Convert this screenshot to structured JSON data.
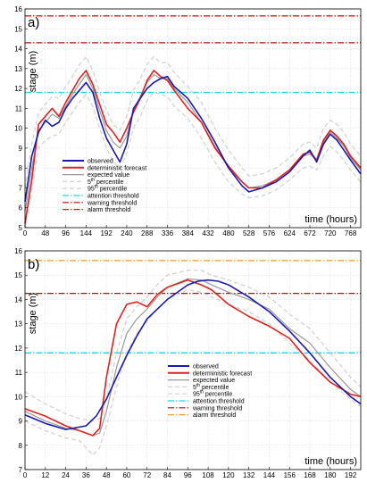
{
  "chart_data": [
    {
      "type": "line",
      "panel_label": "a)",
      "xlabel": "time (hours)",
      "ylabel": "stage (m)",
      "xlim": [
        0,
        792
      ],
      "ylim": [
        5,
        16
      ],
      "xticks": [
        0,
        48,
        96,
        144,
        192,
        240,
        288,
        336,
        384,
        432,
        480,
        528,
        576,
        624,
        672,
        720,
        768
      ],
      "yticks": [
        5,
        6,
        7,
        8,
        9,
        10,
        11,
        12,
        13,
        14,
        15,
        16
      ],
      "grid": true,
      "legend_position": "bottom-left",
      "thresholds": [
        {
          "name": "attention threshold",
          "value": 11.8,
          "color": "#22d3e6"
        },
        {
          "name": "warning threshold",
          "value": 14.3,
          "color": "#aa1111"
        },
        {
          "name": "alarm threshold",
          "value": 15.65,
          "color": "#cc2222"
        }
      ],
      "series": [
        {
          "name": "observed",
          "color": "#1a1aaa",
          "x": [
            0,
            16,
            32,
            48,
            64,
            80,
            96,
            112,
            128,
            144,
            160,
            176,
            192,
            208,
            224,
            240,
            256,
            272,
            288,
            304,
            320,
            336,
            352,
            384,
            416,
            448,
            480,
            512,
            528,
            560,
            592,
            624,
            656,
            672,
            688,
            704,
            720,
            736,
            752,
            768,
            792
          ],
          "y": [
            6.3,
            8.6,
            9.8,
            10.4,
            10.1,
            10.3,
            11.0,
            11.5,
            11.9,
            12.3,
            11.8,
            10.5,
            9.5,
            8.9,
            8.3,
            9.2,
            11.0,
            11.5,
            12.0,
            12.3,
            12.5,
            12.6,
            12.1,
            11.5,
            10.5,
            9.3,
            8.0,
            7.1,
            6.8,
            7.0,
            7.3,
            7.8,
            8.6,
            8.9,
            8.3,
            9.2,
            9.7,
            9.4,
            8.9,
            8.4,
            7.7
          ]
        },
        {
          "name": "deterministic forecast",
          "color": "#dd2222",
          "x": [
            0,
            16,
            32,
            48,
            64,
            80,
            96,
            112,
            128,
            144,
            160,
            176,
            192,
            208,
            224,
            240,
            256,
            272,
            288,
            304,
            320,
            336,
            352,
            384,
            416,
            448,
            480,
            512,
            528,
            560,
            592,
            624,
            656,
            672,
            688,
            704,
            720,
            736,
            752,
            768,
            792
          ],
          "y": [
            5.2,
            7.4,
            10.2,
            10.6,
            11.0,
            10.6,
            11.3,
            11.9,
            12.5,
            12.9,
            12.2,
            11.2,
            10.2,
            9.8,
            9.3,
            10.0,
            10.8,
            11.5,
            12.4,
            12.9,
            12.6,
            12.4,
            11.9,
            11.0,
            10.3,
            9.0,
            8.1,
            7.3,
            7.0,
            7.0,
            7.4,
            7.9,
            8.7,
            8.8,
            8.4,
            9.4,
            9.9,
            9.6,
            9.2,
            8.6,
            8.0
          ]
        },
        {
          "name": "expected value",
          "color": "#999999",
          "x": [
            0,
            16,
            32,
            48,
            64,
            80,
            96,
            112,
            128,
            144,
            160,
            176,
            192,
            208,
            224,
            240,
            256,
            272,
            288,
            304,
            320,
            336,
            352,
            384,
            416,
            448,
            480,
            512,
            528,
            560,
            592,
            624,
            656,
            672,
            688,
            704,
            720,
            736,
            752,
            768,
            792
          ],
          "y": [
            5.8,
            8.0,
            9.9,
            10.3,
            10.7,
            10.5,
            11.1,
            11.7,
            12.2,
            12.7,
            12.0,
            10.9,
            9.9,
            9.3,
            9.0,
            9.6,
            10.9,
            11.6,
            12.3,
            12.7,
            12.5,
            12.5,
            12.0,
            11.3,
            10.3,
            9.1,
            8.0,
            7.3,
            7.0,
            7.1,
            7.4,
            7.9,
            8.6,
            8.7,
            8.4,
            9.3,
            9.8,
            9.5,
            9.1,
            8.5,
            7.9
          ]
        },
        {
          "name": "5th percentile",
          "color": "#d0d0d0",
          "x": [
            0,
            16,
            32,
            48,
            64,
            80,
            96,
            112,
            128,
            144,
            160,
            176,
            192,
            208,
            224,
            240,
            256,
            272,
            288,
            304,
            320,
            336,
            352,
            384,
            416,
            448,
            480,
            512,
            528,
            560,
            592,
            624,
            656,
            672,
            688,
            704,
            720,
            736,
            752,
            768,
            792
          ],
          "y": [
            5.0,
            6.9,
            9.0,
            9.4,
            9.6,
            9.7,
            10.3,
            10.8,
            11.3,
            11.7,
            11.1,
            10.0,
            9.0,
            8.3,
            8.0,
            8.7,
            10.0,
            10.6,
            11.4,
            11.8,
            11.7,
            11.6,
            11.1,
            10.5,
            9.5,
            8.3,
            7.3,
            6.7,
            6.5,
            6.6,
            6.9,
            7.4,
            8.0,
            8.1,
            7.9,
            8.6,
            9.1,
            8.8,
            8.4,
            7.9,
            7.3
          ]
        },
        {
          "name": "95th percentile",
          "color": "#d0d0d0",
          "x": [
            0,
            16,
            32,
            48,
            64,
            80,
            96,
            112,
            128,
            144,
            160,
            176,
            192,
            208,
            224,
            240,
            256,
            272,
            288,
            304,
            320,
            336,
            352,
            384,
            416,
            448,
            480,
            512,
            528,
            560,
            592,
            624,
            656,
            672,
            688,
            704,
            720,
            736,
            752,
            768,
            792
          ],
          "y": [
            7.0,
            9.2,
            10.8,
            11.2,
            11.6,
            11.5,
            12.1,
            12.6,
            13.2,
            13.6,
            12.9,
            11.8,
            10.9,
            10.2,
            9.9,
            10.6,
            11.9,
            12.5,
            13.2,
            13.6,
            13.3,
            13.3,
            12.8,
            12.1,
            11.3,
            10.0,
            8.9,
            8.0,
            7.6,
            7.7,
            8.0,
            8.5,
            9.2,
            9.3,
            9.0,
            10.0,
            10.4,
            10.2,
            9.8,
            9.2,
            8.6
          ]
        }
      ],
      "legend": [
        {
          "label": "observed",
          "color": "#1a1aaa",
          "style": "solid",
          "width": 2
        },
        {
          "label": "deterministic forecast",
          "color": "#dd2222",
          "style": "solid",
          "width": 2
        },
        {
          "label": "expected value",
          "color": "#999999",
          "style": "solid",
          "width": 1.2
        },
        {
          "label": "5",
          "sup": "th",
          "suffix": " percentile",
          "color": "#d0d0d0",
          "style": "dash",
          "width": 1.2
        },
        {
          "label": "95",
          "sup": "th",
          "suffix": " percentile",
          "color": "#d0d0d0",
          "style": "dash",
          "width": 1.2
        },
        {
          "label": "attention threshold",
          "color": "#22d3e6",
          "style": "dashdot",
          "width": 1.2
        },
        {
          "label": "warning threshold",
          "color": "#aa1111",
          "style": "dashdot",
          "width": 1.2
        },
        {
          "label": "alarm threshold",
          "color": "#cc2222",
          "style": "dashdot",
          "width": 1.2
        }
      ]
    },
    {
      "type": "line",
      "panel_label": "b)",
      "xlabel": "time (hours)",
      "ylabel": "stage (m)",
      "xlim": [
        0,
        198
      ],
      "ylim": [
        7,
        16
      ],
      "xticks": [
        0,
        12,
        24,
        36,
        48,
        60,
        72,
        84,
        96,
        108,
        120,
        132,
        144,
        156,
        168,
        180,
        192
      ],
      "yticks": [
        7,
        8,
        9,
        10,
        11,
        12,
        13,
        14,
        15,
        16
      ],
      "grid": true,
      "legend_position": "bottom-center",
      "thresholds": [
        {
          "name": "attention threshold",
          "value": 11.8,
          "color": "#22d3e6"
        },
        {
          "name": "warning threshold",
          "value": 14.25,
          "color": "#aa1111"
        },
        {
          "name": "alarm threshold",
          "value": 15.6,
          "color": "#e89a2a"
        }
      ],
      "series": [
        {
          "name": "observed",
          "color": "#1a1aaa",
          "x": [
            0,
            12,
            24,
            36,
            42,
            48,
            54,
            60,
            66,
            72,
            84,
            96,
            102,
            108,
            114,
            120,
            132,
            144,
            156,
            168,
            180,
            192,
            198
          ],
          "y": [
            9.25,
            8.9,
            8.65,
            8.8,
            9.2,
            9.9,
            10.8,
            11.7,
            12.5,
            13.2,
            14.0,
            14.6,
            14.75,
            14.8,
            14.75,
            14.6,
            14.1,
            13.5,
            12.7,
            11.8,
            10.8,
            10.0,
            9.7
          ]
        },
        {
          "name": "deterministic forecast",
          "color": "#dd2222",
          "x": [
            0,
            12,
            24,
            32,
            40,
            44,
            48,
            54,
            60,
            66,
            72,
            78,
            84,
            96,
            104,
            110,
            120,
            132,
            144,
            156,
            168,
            180,
            192,
            198
          ],
          "y": [
            9.5,
            9.2,
            8.8,
            8.6,
            8.4,
            8.7,
            10.8,
            13.0,
            13.8,
            13.9,
            13.7,
            14.2,
            14.5,
            14.8,
            14.6,
            14.4,
            13.8,
            13.3,
            12.9,
            12.4,
            11.4,
            10.6,
            10.1,
            10.0
          ]
        },
        {
          "name": "expected value",
          "color": "#999999",
          "x": [
            0,
            12,
            24,
            32,
            40,
            44,
            48,
            54,
            60,
            66,
            72,
            78,
            84,
            96,
            104,
            110,
            120,
            132,
            144,
            156,
            168,
            180,
            192,
            198
          ],
          "y": [
            9.4,
            9.0,
            8.7,
            8.6,
            8.4,
            8.5,
            9.4,
            11.2,
            12.6,
            13.2,
            13.6,
            14.1,
            14.5,
            14.85,
            14.8,
            14.6,
            14.3,
            14.0,
            13.6,
            12.8,
            12.2,
            11.2,
            10.3,
            10.0
          ]
        },
        {
          "name": "5th percentile",
          "color": "#d0d0d0",
          "x": [
            0,
            12,
            24,
            32,
            40,
            44,
            48,
            54,
            60,
            66,
            72,
            78,
            84,
            96,
            104,
            110,
            120,
            132,
            144,
            156,
            168,
            180,
            192,
            198
          ],
          "y": [
            9.0,
            8.6,
            8.3,
            8.2,
            7.6,
            7.9,
            8.8,
            10.4,
            11.8,
            12.6,
            13.1,
            13.6,
            14.0,
            14.4,
            14.3,
            14.1,
            13.8,
            13.5,
            13.0,
            12.2,
            11.5,
            10.6,
            9.9,
            9.6
          ]
        },
        {
          "name": "95th percentile",
          "color": "#d0d0d0",
          "x": [
            0,
            12,
            24,
            32,
            40,
            44,
            48,
            54,
            60,
            66,
            72,
            78,
            84,
            96,
            104,
            110,
            120,
            132,
            144,
            156,
            168,
            180,
            192,
            198
          ],
          "y": [
            10.2,
            9.7,
            9.3,
            9.1,
            9.0,
            9.1,
            9.9,
            11.8,
            13.2,
            13.7,
            14.1,
            14.6,
            15.0,
            15.2,
            15.2,
            15.0,
            14.8,
            14.5,
            14.1,
            13.4,
            12.8,
            11.8,
            10.8,
            10.4
          ]
        }
      ],
      "legend": [
        {
          "label": "observed",
          "color": "#1a1aaa",
          "style": "solid",
          "width": 2
        },
        {
          "label": "deterministic forecast",
          "color": "#dd2222",
          "style": "solid",
          "width": 2
        },
        {
          "label": "expected value",
          "color": "#999999",
          "style": "solid",
          "width": 1.2
        },
        {
          "label": "5",
          "sup": "th",
          "suffix": " percentile",
          "color": "#d0d0d0",
          "style": "dash",
          "width": 1.2
        },
        {
          "label": "95",
          "sup": "th",
          "suffix": " percentile",
          "color": "#d0d0d0",
          "style": "dash",
          "width": 1.2
        },
        {
          "label": "attention threshold",
          "color": "#22d3e6",
          "style": "dashdot",
          "width": 1.2
        },
        {
          "label": "warning threshold",
          "color": "#aa1111",
          "style": "dashdot",
          "width": 1.2
        },
        {
          "label": "alarm threshold",
          "color": "#e89a2a",
          "style": "dashdot",
          "width": 1.2
        }
      ]
    }
  ]
}
